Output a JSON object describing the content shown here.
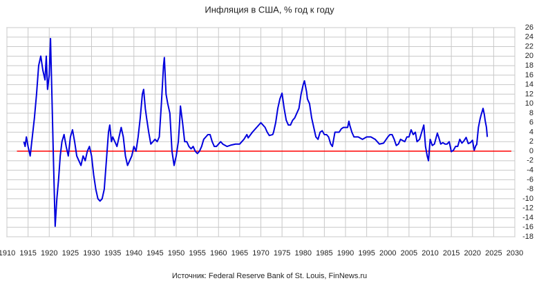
{
  "chart_data": {
    "type": "line",
    "title": "Инфляция в США, % год к году",
    "source": "Источник: Federal Reserve Bank of St. Louis, FinNews.ru",
    "color": "#0000dd",
    "reference_line": {
      "value": 0,
      "color": "#ff0000"
    },
    "grid": true,
    "y_axis_side": "right",
    "xlim": [
      1910,
      2030
    ],
    "xticks": [
      1910,
      1915,
      1920,
      1925,
      1930,
      1935,
      1940,
      1945,
      1950,
      1955,
      1960,
      1965,
      1970,
      1975,
      1980,
      1985,
      1990,
      1995,
      2000,
      2005,
      2010,
      2015,
      2020,
      2025,
      2030
    ],
    "ylim": [
      -18,
      26
    ],
    "yticks": [
      -18,
      -16,
      -14,
      -12,
      -10,
      -8,
      -6,
      -4,
      -2,
      0,
      2,
      4,
      6,
      8,
      10,
      12,
      14,
      16,
      18,
      20,
      22,
      24,
      26
    ],
    "x": [
      1914.0,
      1914.3,
      1914.6,
      1915.0,
      1915.5,
      1916.0,
      1916.5,
      1917.0,
      1917.5,
      1918.0,
      1918.5,
      1919.0,
      1919.3,
      1919.6,
      1920.0,
      1920.3,
      1920.6,
      1921.0,
      1921.4,
      1921.8,
      1922.2,
      1922.6,
      1923.0,
      1923.5,
      1924.0,
      1924.5,
      1925.0,
      1925.5,
      1926.0,
      1926.5,
      1927.0,
      1927.5,
      1928.0,
      1928.5,
      1929.0,
      1929.5,
      1930.0,
      1930.5,
      1931.0,
      1931.5,
      1932.0,
      1932.5,
      1933.0,
      1933.5,
      1934.0,
      1934.3,
      1934.7,
      1935.0,
      1935.5,
      1936.0,
      1936.5,
      1937.0,
      1937.5,
      1938.0,
      1938.5,
      1939.0,
      1939.5,
      1940.0,
      1940.5,
      1941.0,
      1941.5,
      1942.0,
      1942.3,
      1942.7,
      1943.0,
      1943.5,
      1944.0,
      1944.5,
      1945.0,
      1945.5,
      1946.0,
      1946.5,
      1947.0,
      1947.2,
      1947.6,
      1948.0,
      1948.5,
      1949.0,
      1949.5,
      1950.0,
      1950.5,
      1950.8,
      1951.0,
      1951.5,
      1952.0,
      1952.5,
      1953.0,
      1953.5,
      1954.0,
      1954.5,
      1955.0,
      1955.5,
      1956.0,
      1956.5,
      1957.0,
      1957.5,
      1958.0,
      1958.5,
      1959.0,
      1959.5,
      1960.0,
      1960.5,
      1961.0,
      1962.0,
      1963.0,
      1964.0,
      1965.0,
      1966.0,
      1966.7,
      1967.0,
      1968.0,
      1969.0,
      1970.0,
      1971.0,
      1971.5,
      1972.0,
      1972.8,
      1973.0,
      1973.5,
      1974.0,
      1974.5,
      1975.0,
      1975.5,
      1976.0,
      1976.5,
      1977.0,
      1977.5,
      1978.0,
      1978.5,
      1979.0,
      1979.5,
      1980.0,
      1980.3,
      1980.8,
      1981.0,
      1981.5,
      1982.0,
      1982.5,
      1983.0,
      1983.5,
      1984.0,
      1984.5,
      1985.0,
      1985.5,
      1986.0,
      1986.5,
      1986.9,
      1987.5,
      1988.0,
      1988.5,
      1989.0,
      1989.5,
      1990.0,
      1990.5,
      1990.8,
      1991.0,
      1991.5,
      1992.0,
      1993.0,
      1994.0,
      1995.0,
      1996.0,
      1997.0,
      1998.0,
      1999.0,
      2000.0,
      2000.5,
      2001.0,
      2001.5,
      2002.0,
      2002.5,
      2003.0,
      2004.0,
      2004.5,
      2005.0,
      2005.5,
      2006.0,
      2006.5,
      2006.9,
      2007.5,
      2008.0,
      2008.5,
      2008.9,
      2009.3,
      2009.6,
      2010.0,
      2010.5,
      2011.0,
      2011.7,
      2012.0,
      2012.5,
      2013.0,
      2013.5,
      2014.0,
      2014.5,
      2015.0,
      2015.5,
      2016.0,
      2016.5,
      2017.0,
      2017.5,
      2018.0,
      2018.5,
      2019.0,
      2019.5,
      2020.0,
      2020.4,
      2020.8,
      2021.0,
      2021.4,
      2021.8,
      2022.0,
      2022.5,
      2022.8,
      2023.0,
      2023.3,
      2023.5
    ],
    "values": [
      2,
      1,
      3,
      1,
      -1,
      3,
      7,
      12,
      18,
      20,
      17,
      15,
      20,
      13,
      16,
      23.7,
      13,
      -2,
      -15.8,
      -10,
      -6,
      -1,
      2,
      3.5,
      1,
      -1,
      3,
      4.5,
      2,
      -1,
      -2,
      -3,
      -1,
      -2,
      0,
      1,
      -1,
      -5,
      -8,
      -10,
      -10.5,
      -10,
      -8,
      -2,
      4,
      5.5,
      2,
      3,
      2,
      1,
      3,
      5,
      3,
      -1,
      -3,
      -2,
      -1,
      1,
      0,
      3,
      7,
      12,
      13,
      9,
      7,
      4,
      1.5,
      2,
      2.5,
      2,
      3,
      10,
      18,
      19.7,
      12,
      10,
      8,
      0,
      -3,
      -1,
      2,
      6,
      9.5,
      6,
      2,
      2,
      1,
      0.5,
      1,
      0,
      -0.5,
      0,
      1,
      2.5,
      3,
      3.5,
      3.5,
      2,
      1,
      1,
      1.5,
      2,
      1.5,
      1,
      1.3,
      1.5,
      1.5,
      2.5,
      3.5,
      2.8,
      4,
      5,
      6,
      5,
      4,
      3.3,
      3.5,
      4,
      6,
      9,
      11,
      12.2,
      9,
      6.5,
      5.5,
      5.5,
      6.5,
      7,
      8,
      9,
      12,
      14,
      14.8,
      12.5,
      11,
      10,
      7,
      5,
      3,
      2.5,
      4,
      4.3,
      3.5,
      3.5,
      3,
      1.5,
      1,
      4,
      4,
      4,
      4.7,
      5,
      5,
      5,
      6.3,
      5.5,
      4,
      3,
      3,
      2.5,
      3,
      3,
      2.5,
      1.5,
      1.7,
      3,
      3.5,
      3.5,
      2.5,
      1.2,
      1.5,
      2.5,
      2,
      3,
      3,
      4.5,
      3.5,
      4,
      2,
      2.5,
      4,
      5.5,
      1,
      -1,
      -2,
      2.5,
      1.2,
      1.5,
      3.8,
      3,
      1.5,
      1.8,
      1.5,
      1.5,
      2,
      -0.1,
      0.2,
      1,
      1,
      2.5,
      1.7,
      2.2,
      2.9,
      1.6,
      1.8,
      2.3,
      0.2,
      1.2,
      1.4,
      5,
      6.8,
      7.5,
      9,
      7.7,
      6.4,
      5,
      3
    ]
  }
}
